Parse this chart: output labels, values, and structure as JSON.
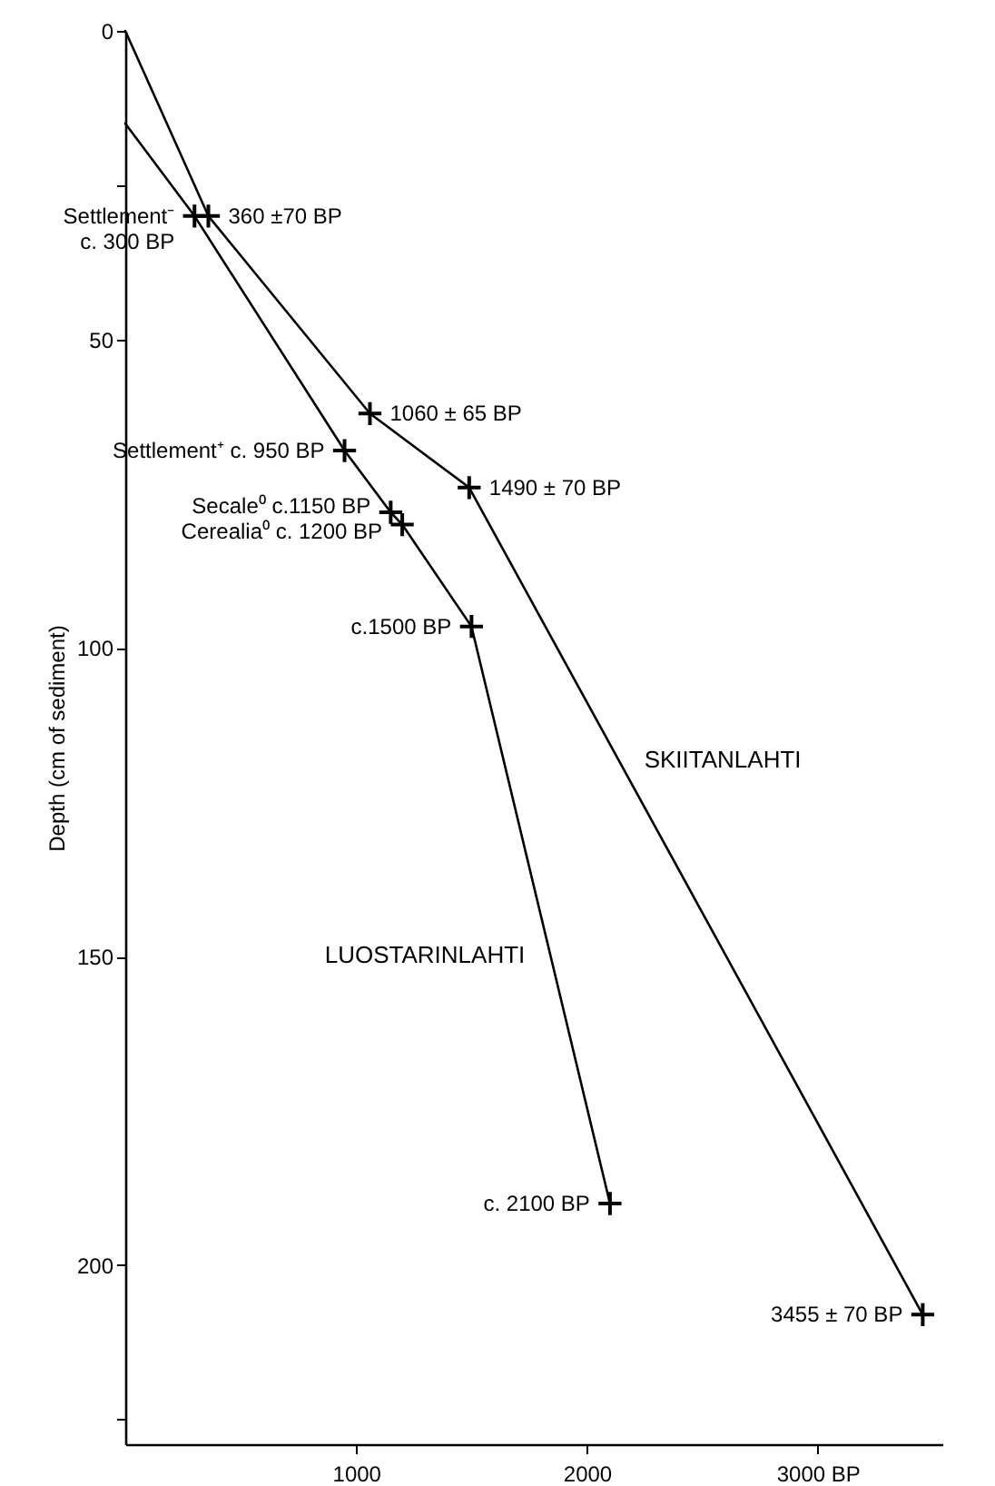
{
  "chart_data": {
    "type": "line",
    "ylabel": "Depth (cm of sediment)",
    "xlim": [
      0,
      3540
    ],
    "xticks": [
      1000,
      2000,
      {
        "value": 3000,
        "label": "3000 BP"
      }
    ],
    "ylim": [
      229,
      0
    ],
    "yticks": [
      0,
      {
        "value": 25,
        "label": null
      },
      50,
      100,
      150,
      200,
      {
        "value": 225,
        "label": null
      }
    ],
    "grid": false,
    "legend": false,
    "series": [
      {
        "name": "SKIITANLAHTI",
        "color": "#000000",
        "marker": "none",
        "x": [
          0,
          360,
          1060,
          1490,
          3455
        ],
        "values": [
          0,
          30,
          62,
          74,
          208
        ]
      },
      {
        "name": "LUOSTARINLAHTI",
        "color": "#000000",
        "marker": "none",
        "x": [
          0,
          300,
          950,
          1150,
          1200,
          1500,
          2100
        ],
        "values": [
          15,
          30,
          68,
          78,
          80,
          96.5,
          190
        ]
      },
      {
        "type": "scatter",
        "color": "#000000",
        "marker": "cross",
        "x": [
          360,
          1060,
          1490,
          3455
        ],
        "values": [
          30,
          62,
          74,
          208
        ]
      },
      {
        "type": "scatter",
        "color": "#000000",
        "marker": "cross",
        "x": [
          300,
          950,
          1150,
          1200,
          1500,
          2100
        ],
        "values": [
          30,
          68,
          78,
          80,
          96.5,
          190
        ]
      }
    ],
    "annotations": [
      {
        "text": "360 ±70 BP",
        "x": 360,
        "y": 30
      },
      {
        "text": "1060 ± 65 BP",
        "x": 1060,
        "y": 62
      },
      {
        "text": "1490 ± 70 BP",
        "x": 1490,
        "y": 74
      },
      {
        "text": "3455 ± 70 BP",
        "x": 3455,
        "y": 208
      },
      {
        "text": "Settlement⁻\nc. 300 BP",
        "x": 300,
        "y": 30
      },
      {
        "text": "Settlement⁺ c. 950 BP",
        "x": 950,
        "y": 68
      },
      {
        "text": "Secale⁰ c.1150 BP",
        "x": 1150,
        "y": 78
      },
      {
        "text": "Cerealia⁰ c. 1200 BP",
        "x": 1200,
        "y": 80
      },
      {
        "text": "c.1500 BP",
        "x": 1500,
        "y": 96.5
      },
      {
        "text": "c. 2100 BP",
        "x": 2100,
        "y": 190
      }
    ]
  }
}
